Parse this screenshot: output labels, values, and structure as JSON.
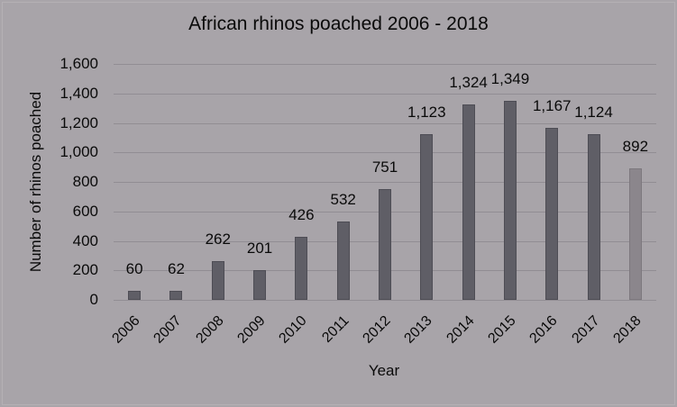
{
  "chart_data": {
    "type": "bar",
    "title": "African rhinos poached 2006 - 2018",
    "xlabel": "Year",
    "ylabel": "Number of rhinos poached",
    "categories": [
      "2006",
      "2007",
      "2008",
      "2009",
      "2010",
      "2011",
      "2012",
      "2013",
      "2014",
      "2015",
      "2016",
      "2017",
      "2018"
    ],
    "values": [
      60,
      62,
      262,
      201,
      426,
      532,
      751,
      1123,
      1324,
      1349,
      1167,
      1124,
      892
    ],
    "value_labels": [
      "60",
      "62",
      "262",
      "201",
      "426",
      "532",
      "751",
      "1,123",
      "1,324",
      "1,349",
      "1,167",
      "1,124",
      "892"
    ],
    "ylim": [
      0,
      1600
    ],
    "yticks": [
      "0",
      "200",
      "400",
      "600",
      "800",
      "1,000",
      "1,200",
      "1,400",
      "1,600"
    ],
    "grid": true,
    "legend": null,
    "colors": {
      "bar": "#5f5e66",
      "highlight_bar": "#8b868c",
      "background": "#a9a5aa",
      "grid": "#918d93"
    }
  }
}
